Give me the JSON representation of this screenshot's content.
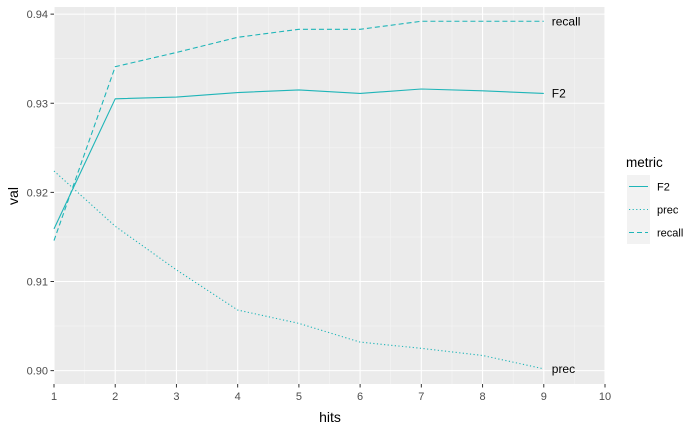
{
  "chart_data": {
    "type": "line",
    "xlabel": "hits",
    "ylabel": "val",
    "xlim": [
      1,
      10
    ],
    "ylim": [
      0.8985,
      0.9408
    ],
    "x_ticks": [
      "1",
      "2",
      "3",
      "4",
      "5",
      "6",
      "7",
      "8",
      "9",
      "10"
    ],
    "y_ticks": [
      "0.90",
      "0.91",
      "0.92",
      "0.93",
      "0.94"
    ],
    "grid": true,
    "legend": {
      "title": "metric",
      "position": "right",
      "entries": [
        "F2",
        "prec",
        "recall"
      ]
    },
    "series": [
      {
        "name": "F2",
        "x": [
          1,
          2,
          3,
          4,
          5,
          6,
          7,
          8,
          9
        ],
        "values": [
          0.9159,
          0.9305,
          0.9307,
          0.9312,
          0.9315,
          0.9311,
          0.9316,
          0.9314,
          0.9311
        ],
        "line_style": "solid",
        "end_label": "F2"
      },
      {
        "name": "prec",
        "x": [
          1,
          2,
          3,
          4,
          5,
          6,
          7,
          8,
          9
        ],
        "values": [
          0.9224,
          0.9162,
          0.9113,
          0.9068,
          0.9053,
          0.9032,
          0.9025,
          0.9017,
          0.9002
        ],
        "line_style": "dotted",
        "end_label": "prec"
      },
      {
        "name": "recall",
        "x": [
          1,
          2,
          3,
          4,
          5,
          6,
          7,
          8,
          9
        ],
        "values": [
          0.9146,
          0.9341,
          0.9357,
          0.9374,
          0.9383,
          0.9383,
          0.9392,
          0.9392,
          0.9392
        ],
        "line_style": "dashed",
        "end_label": "recall"
      }
    ],
    "colors": {
      "line": "#1fb5b8",
      "panel_bg": "#ebebeb",
      "legend_key_bg": "#f2f2f2",
      "grid_major": "#ffffff",
      "grid_minor": "#f5f5f5"
    }
  }
}
